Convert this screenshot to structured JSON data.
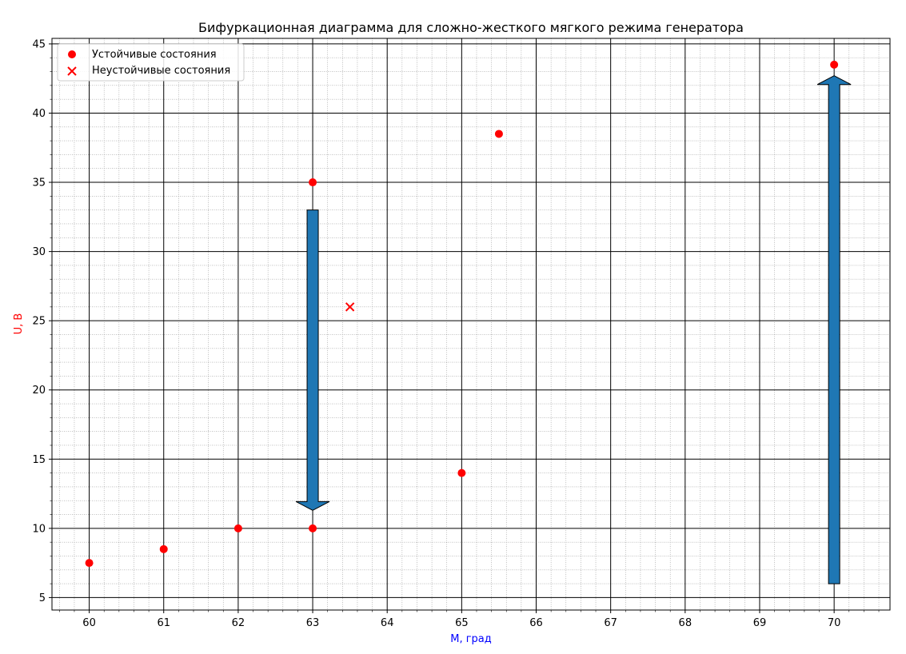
{
  "chart_data": {
    "type": "scatter",
    "title": "Бифуркационная диаграмма для сложно-жесткого мягкого режима генератора",
    "xlabel": "M, град",
    "ylabel": "U, В",
    "xlim": [
      59.5,
      70.75
    ],
    "ylim": [
      4.1,
      45.4
    ],
    "xticks": [
      60,
      61,
      62,
      63,
      64,
      65,
      66,
      67,
      68,
      69,
      70
    ],
    "yticks": [
      5,
      10,
      15,
      20,
      25,
      30,
      35,
      40,
      45
    ],
    "grid": "major solid black, minor dotted gray",
    "legend_position": "top-left",
    "series": [
      {
        "name": "Устойчивые состояния",
        "marker": "circle",
        "color": "#ff0000",
        "points": [
          {
            "x": 60,
            "y": 7.5
          },
          {
            "x": 61,
            "y": 8.5
          },
          {
            "x": 62,
            "y": 10
          },
          {
            "x": 63,
            "y": 10
          },
          {
            "x": 63,
            "y": 35
          },
          {
            "x": 65,
            "y": 14
          },
          {
            "x": 65.5,
            "y": 38.5
          },
          {
            "x": 70,
            "y": 43.5
          }
        ]
      },
      {
        "name": "Неустойчивые состояния",
        "marker": "x",
        "color": "#ff0000",
        "points": [
          {
            "x": 63.5,
            "y": 26
          }
        ]
      }
    ],
    "arrows": [
      {
        "x": 63,
        "from_y": 33,
        "to_y": 11.3,
        "direction": "down",
        "color": "#1f77b4"
      },
      {
        "x": 70,
        "from_y": 6,
        "to_y": 42.7,
        "direction": "up",
        "color": "#1f77b4"
      }
    ]
  }
}
